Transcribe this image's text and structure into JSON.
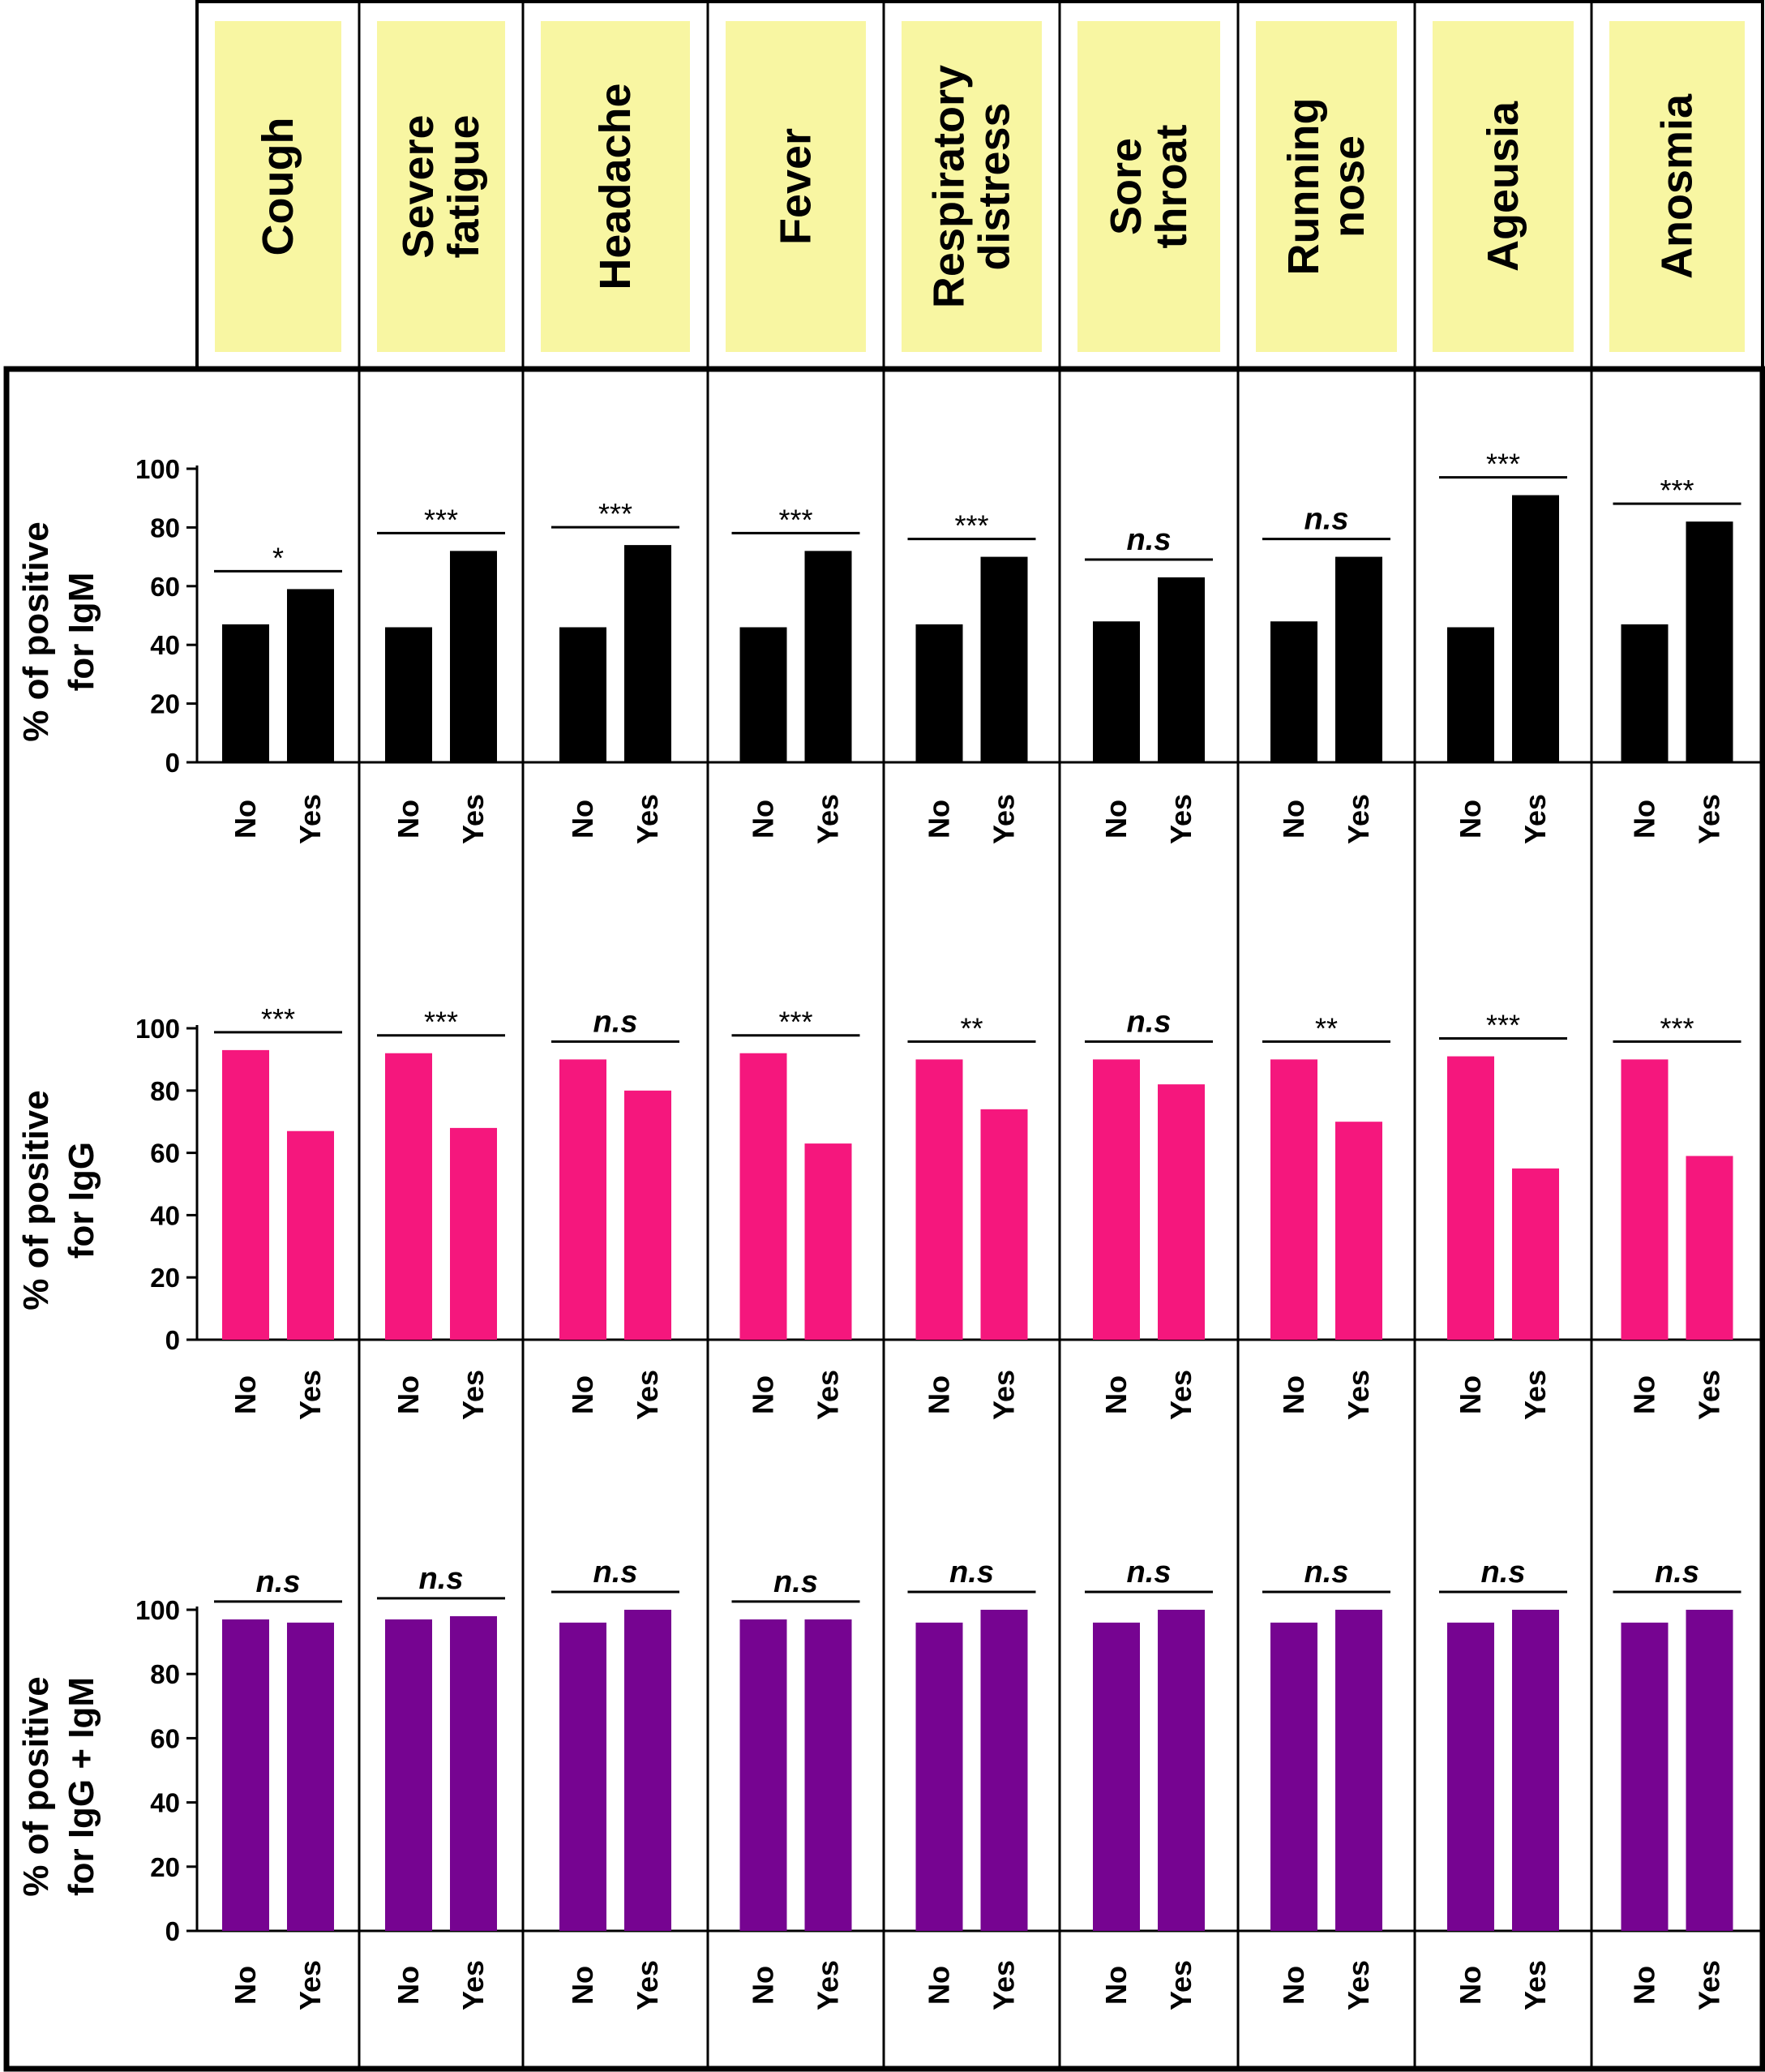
{
  "symptoms": [
    [
      "Cough"
    ],
    [
      "Severe",
      "fatigue"
    ],
    [
      "Headache"
    ],
    [
      "Fever"
    ],
    [
      "Respiratory",
      "distress"
    ],
    [
      "Sore",
      "throat"
    ],
    [
      "Running",
      "nose"
    ],
    [
      "Ageusia"
    ],
    [
      "Anosmia"
    ]
  ],
  "colors": {
    "header_fill": "#f8f6a2",
    "igm_bar": "#000000",
    "igg_bar": "#f5177d",
    "combined_bar": "#760491"
  },
  "chart_data": [
    {
      "type": "bar",
      "ylabel": [
        "% of positive",
        "for IgM"
      ],
      "yticks": [
        0,
        20,
        40,
        60,
        80,
        100
      ],
      "ylim": [
        0,
        100
      ],
      "categories": [
        "No",
        "Yes"
      ],
      "values": [
        [
          47,
          59
        ],
        [
          46,
          72
        ],
        [
          46,
          74
        ],
        [
          46,
          72
        ],
        [
          47,
          70
        ],
        [
          48,
          63
        ],
        [
          48,
          70
        ],
        [
          46,
          91
        ],
        [
          47,
          82
        ]
      ],
      "significance": [
        "*",
        "***",
        "***",
        "***",
        "***",
        "n.s",
        "n.s",
        "***",
        "***"
      ]
    },
    {
      "type": "bar",
      "ylabel": [
        "% of positive",
        "for IgG"
      ],
      "yticks": [
        0,
        20,
        40,
        60,
        80,
        100
      ],
      "ylim": [
        0,
        100
      ],
      "categories": [
        "No",
        "Yes"
      ],
      "values": [
        [
          93,
          67
        ],
        [
          92,
          68
        ],
        [
          90,
          80
        ],
        [
          92,
          63
        ],
        [
          90,
          74
        ],
        [
          90,
          82
        ],
        [
          90,
          70
        ],
        [
          91,
          55
        ],
        [
          90,
          59
        ]
      ],
      "significance": [
        "***",
        "***",
        "n.s",
        "***",
        "**",
        "n.s",
        "**",
        "***",
        "***"
      ]
    },
    {
      "type": "bar",
      "ylabel": [
        "% of positive",
        "for IgG + IgM"
      ],
      "yticks": [
        0,
        20,
        40,
        60,
        80,
        100
      ],
      "ylim": [
        0,
        100
      ],
      "categories": [
        "No",
        "Yes"
      ],
      "values": [
        [
          97,
          96
        ],
        [
          97,
          98
        ],
        [
          96,
          100
        ],
        [
          97,
          97
        ],
        [
          96,
          100
        ],
        [
          96,
          100
        ],
        [
          96,
          100
        ],
        [
          96,
          100
        ],
        [
          96,
          100
        ]
      ],
      "significance": [
        "n.s",
        "n.s",
        "n.s",
        "n.s",
        "n.s",
        "n.s",
        "n.s",
        "n.s",
        "n.s"
      ]
    }
  ]
}
